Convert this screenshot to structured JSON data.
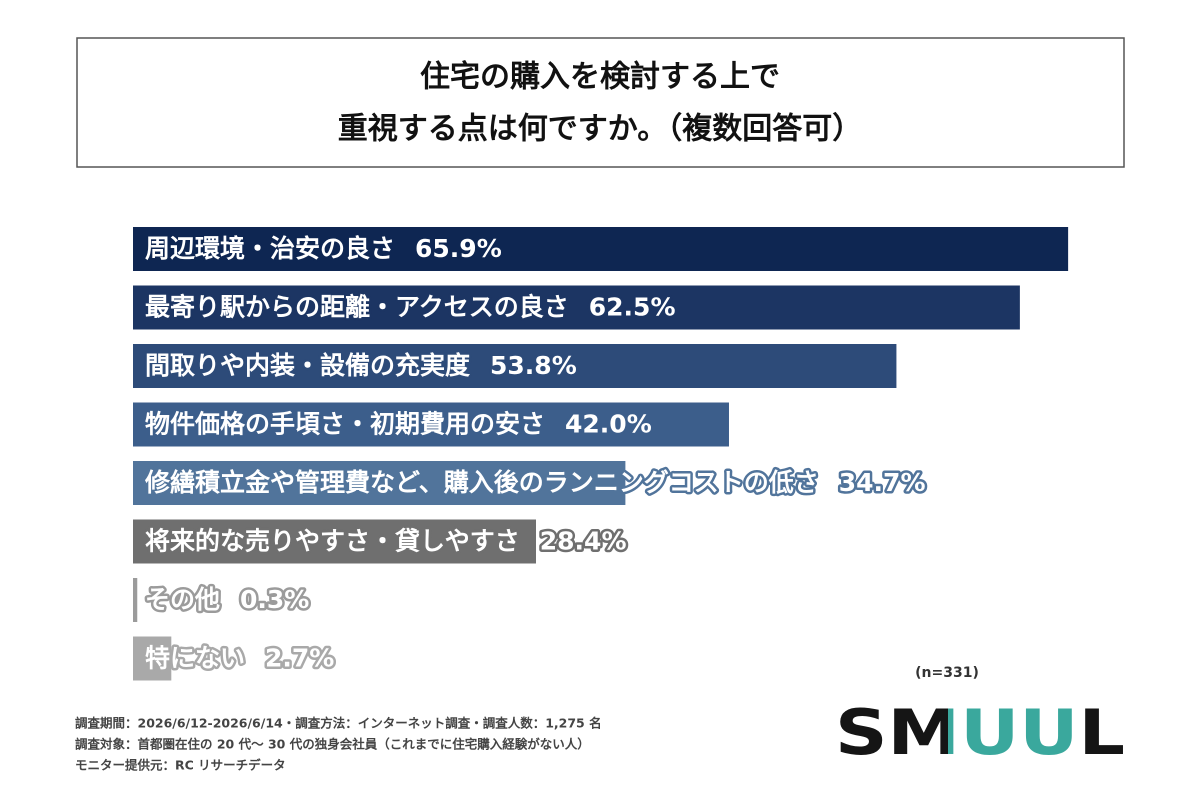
{
  "chart_data": {
    "type": "bar",
    "orientation": "horizontal",
    "title": [
      "住宅の購入を検討する上で",
      "重視する点は何ですか。（複数回答可）"
    ],
    "categories": [
      "周辺環境・治安の良さ",
      "最寄り駅からの距離・アクセスの良さ",
      "間取りや内装・設備の充実度",
      "物件価格の手頃さ・初期費用の安さ",
      "修繕積立金や管理費など、購入後のランニングコストの低さ",
      "将来的な売りやすさ・貸しやすさ",
      "その他",
      "特にない"
    ],
    "values": [
      65.9,
      62.5,
      53.8,
      42.0,
      34.7,
      28.4,
      0.3,
      2.7
    ],
    "value_labels": [
      "65.9%",
      "62.5%",
      "53.8%",
      "42.0%",
      "34.7%",
      "28.4%",
      "0.3%",
      "2.7%"
    ],
    "colors": [
      "#0e2652",
      "#1c3563",
      "#2d4b79",
      "#3c5e8b",
      "#51749b",
      "#6f6f6f",
      "#9b9b9b",
      "#a9a9a9"
    ],
    "note": "(n=331)",
    "footer": [
      "調査期間：2026/6/12-2026/6/14・調査方法：インターネット調査・調査人数：1,275 名",
      "調査対象：首都圏在住の 20 代〜 30 代の独身会社員（これまでに住宅購入経験がない人）",
      "モニター提供元：RC リサーチデータ"
    ],
    "logo": "SMUUL"
  }
}
